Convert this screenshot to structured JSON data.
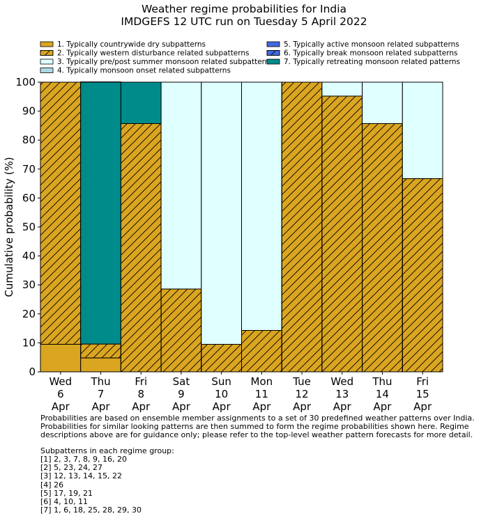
{
  "chart_data": {
    "type": "bar",
    "stacked": true,
    "title": "Weather regime probabilities for India",
    "subtitle": "IMDGEFS 12 UTC run on Tuesday 5 April 2022",
    "xlabel": "",
    "ylabel": "Cumulative probability (%)",
    "ylim": [
      0,
      100
    ],
    "yticks": [
      0,
      10,
      20,
      30,
      40,
      50,
      60,
      70,
      80,
      90,
      100
    ],
    "grid": false,
    "legend_position": "top",
    "categories": [
      [
        "Wed",
        "6",
        "Apr"
      ],
      [
        "Thu",
        "7",
        "Apr"
      ],
      [
        "Fri",
        "8",
        "Apr"
      ],
      [
        "Sat",
        "9",
        "Apr"
      ],
      [
        "Sun",
        "10",
        "Apr"
      ],
      [
        "Mon",
        "11",
        "Apr"
      ],
      [
        "Tue",
        "12",
        "Apr"
      ],
      [
        "Wed",
        "13",
        "Apr"
      ],
      [
        "Thu",
        "14",
        "Apr"
      ],
      [
        "Fri",
        "15",
        "Apr"
      ]
    ],
    "series": [
      {
        "name": "1. Typically countrywide dry subpatterns",
        "color": "#DAA520",
        "hatch": false,
        "values": [
          9.5,
          4.8,
          0,
          0,
          0,
          0,
          0,
          0,
          0,
          0
        ]
      },
      {
        "name": "2. Typically western disturbance related subpatterns",
        "color": "#DAA520",
        "hatch": true,
        "values": [
          90.5,
          4.8,
          85.7,
          28.6,
          9.5,
          14.3,
          100,
          95.2,
          85.7,
          66.7
        ]
      },
      {
        "name": "3. Typically pre/post summer monsoon related subpatterns",
        "color": "#E0FFFF",
        "hatch": false,
        "values": [
          0,
          0,
          0,
          71.4,
          90.5,
          85.7,
          0,
          4.8,
          14.3,
          33.3
        ]
      },
      {
        "name": "4. Typically monsoon onset related subpatterns",
        "color": "#ADD8E6",
        "hatch": false,
        "values": [
          0,
          0,
          0,
          0,
          0,
          0,
          0,
          0,
          0,
          0
        ]
      },
      {
        "name": "5. Typically active monsoon related subpatterns",
        "color": "#4169E1",
        "hatch": false,
        "values": [
          0,
          0,
          0,
          0,
          0,
          0,
          0,
          0,
          0,
          0
        ]
      },
      {
        "name": "6. Typically break monsoon related subpatterns",
        "color": "#4169E1",
        "hatch": true,
        "values": [
          0,
          0,
          0,
          0,
          0,
          0,
          0,
          0,
          0,
          0
        ]
      },
      {
        "name": "7. Typically retreating monsoon related patterns",
        "color": "#008B8B",
        "hatch": false,
        "values": [
          0,
          90.5,
          14.3,
          0,
          0,
          0,
          0,
          0,
          0,
          0
        ]
      }
    ]
  },
  "footer": {
    "note": "Probabilities are based on ensemble member assignments to a set of 30 predefined weather patterns over India.\nProbabilities for similar looking patterns are then summed to form the regime probabilities shown here. Regime\ndescriptions above are for guidance only; please refer to the top-level weather pattern forecasts for more detail.",
    "groups_heading": "Subpatterns in each regime group:",
    "groups": [
      "[1] 2, 3, 7, 8, 9, 16, 20",
      "[2] 5, 23, 24, 27",
      "[3] 12, 13, 14, 15, 22",
      "[4] 26",
      "[5] 17, 19, 21",
      "[6] 4, 10, 11",
      "[7] 1, 6, 18, 25, 28, 29, 30"
    ]
  }
}
